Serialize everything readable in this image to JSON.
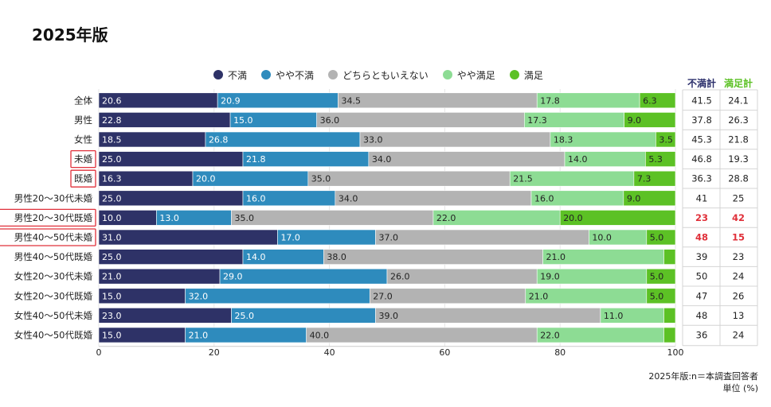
{
  "title": "2025年版",
  "legend": [
    {
      "label": "不満",
      "color": "#2e3267"
    },
    {
      "label": "やや不満",
      "color": "#2e8bbd"
    },
    {
      "label": "どちらともいえない",
      "color": "#b3b3b3"
    },
    {
      "label": "やや満足",
      "color": "#8ddc94"
    },
    {
      "label": "満足",
      "color": "#5cc125"
    }
  ],
  "totals_headers": {
    "dissatisfied": "不満計",
    "satisfied": "満足計"
  },
  "footnote": {
    "line1": "2025年版:n＝本調査回答者",
    "line2": "単位 (%)"
  },
  "highlight_color": "#e0303a",
  "chart_data": {
    "type": "bar",
    "orientation": "horizontal",
    "stacked": true,
    "title": "2025年版",
    "xlim": [
      0,
      100
    ],
    "xticks": [
      0,
      20,
      40,
      60,
      80,
      100
    ],
    "categories": [
      "全体",
      "男性",
      "女性",
      "未婚",
      "既婚",
      "男性20～30代未婚",
      "男性20～30代既婚",
      "男性40～50代未婚",
      "男性40～50代既婚",
      "女性20～30代未婚",
      "女性20～30代既婚",
      "女性40～50代未婚",
      "女性40～50代既婚"
    ],
    "boxed_categories": [
      "未婚",
      "既婚",
      "男性20～30代既婚",
      "男性40～50代未婚"
    ],
    "series": [
      {
        "name": "不満",
        "color": "#2e3267",
        "text_color": "#ffffff",
        "values": [
          20.6,
          22.8,
          18.5,
          25.0,
          16.3,
          25.0,
          10.0,
          31.0,
          25.0,
          21.0,
          15.0,
          23.0,
          15.0
        ],
        "labels": [
          "20.6",
          "22.8",
          "18.5",
          "25.0",
          "16.3",
          "25.0",
          "10.0",
          "31.0",
          "25.0",
          "21.0",
          "15.0",
          "23.0",
          "15.0"
        ]
      },
      {
        "name": "やや不満",
        "color": "#2e8bbd",
        "text_color": "#ffffff",
        "values": [
          20.9,
          15.0,
          26.8,
          21.8,
          20.0,
          16.0,
          13.0,
          17.0,
          14.0,
          29.0,
          32.0,
          25.0,
          21.0
        ],
        "labels": [
          "20.9",
          "15.0",
          "26.8",
          "21.8",
          "20.0",
          "16.0",
          "13.0",
          "17.0",
          "14.0",
          "29.0",
          "32.0",
          "25.0",
          "21.0"
        ]
      },
      {
        "name": "どちらともいえない",
        "color": "#b3b3b3",
        "text_color": "#222222",
        "values": [
          34.5,
          36.0,
          33.0,
          34.0,
          35.0,
          34.0,
          35.0,
          37.0,
          38.0,
          26.0,
          27.0,
          39.0,
          40.0
        ],
        "labels": [
          "34.5",
          "36.0",
          "33.0",
          "34.0",
          "35.0",
          "34.0",
          "35.0",
          "37.0",
          "38.0",
          "26.0",
          "27.0",
          "39.0",
          "40.0"
        ]
      },
      {
        "name": "やや満足",
        "color": "#8ddc94",
        "text_color": "#222222",
        "values": [
          17.8,
          17.3,
          18.3,
          14.0,
          21.5,
          16.0,
          22.0,
          10.0,
          21.0,
          19.0,
          21.0,
          11.0,
          22.0
        ],
        "labels": [
          "17.8",
          "17.3",
          "18.3",
          "14.0",
          "21.5",
          "16.0",
          "22.0",
          "10.0",
          "21.0",
          "19.0",
          "21.0",
          "11.0",
          "22.0"
        ]
      },
      {
        "name": "満足",
        "color": "#5cc125",
        "text_color": "#222222",
        "values": [
          6.3,
          9.0,
          3.5,
          5.3,
          7.3,
          9.0,
          20.0,
          5.0,
          2.0,
          5.0,
          5.0,
          2.0,
          2.0
        ],
        "labels": [
          "6.3",
          "9.0",
          "3.5",
          "5.3",
          "7.3",
          "9.0",
          "20.0",
          "5.0",
          "",
          "5.0",
          "5.0",
          "",
          ""
        ]
      }
    ],
    "totals": {
      "dissatisfied": [
        "41.5",
        "37.8",
        "45.3",
        "46.8",
        "36.3",
        "41",
        "23",
        "48",
        "39",
        "50",
        "47",
        "48",
        "36"
      ],
      "satisfied": [
        "24.1",
        "26.3",
        "21.8",
        "19.3",
        "28.8",
        "25",
        "42",
        "15",
        "23",
        "24",
        "26",
        "13",
        "24"
      ],
      "highlighted_rows": [
        6,
        7
      ]
    }
  }
}
